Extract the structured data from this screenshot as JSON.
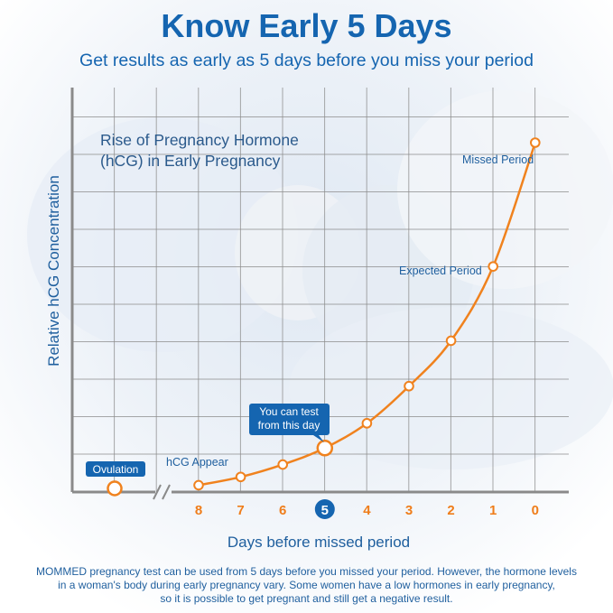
{
  "header": {
    "title": "Know Early 5 Days",
    "subtitle": "Get results as early as 5 days before you miss your period"
  },
  "chart_data": {
    "type": "line",
    "title": [
      "Rise of Pregnancy Hormone",
      "(hCG) in Early Pregnancy"
    ],
    "xlabel": "Days before missed period",
    "ylabel": "Relative hCG Concentration",
    "x_tick_labels": [
      "8",
      "7",
      "6",
      "5",
      "4",
      "3",
      "2",
      "1",
      "0"
    ],
    "highlighted_tick": "5",
    "x": [
      8,
      7,
      6,
      5,
      4,
      3,
      2,
      1,
      0
    ],
    "values": [
      0.1,
      0.3,
      0.6,
      1.0,
      1.6,
      2.5,
      3.6,
      5.4,
      8.4
    ],
    "ylim": [
      0,
      9.8
    ],
    "grid": true,
    "start_point": {
      "label": "Ovulation",
      "value": 0
    },
    "annotations": [
      {
        "text": "hCG Appear",
        "day": 8
      },
      {
        "text": [
          "You can test",
          "from this day"
        ],
        "day": 5
      },
      {
        "text": "Expected Period",
        "day": 1
      },
      {
        "text": "Missed Period",
        "day": 0
      }
    ]
  },
  "footer": {
    "lines": [
      "MOMMED pregnancy test can be used from 5 days before you missed your period. However,  the hormone levels",
      "in a woman's body during early pregnancy vary. Some women have a low hormones in early pregnancy,",
      "so it is possible to get pregnant and still get a negative result."
    ]
  },
  "colors": {
    "title_blue": "#1565b0",
    "label_blue": "#1f5f9e",
    "curve_orange": "#f0821e",
    "tick_orange": "#ef7d1a",
    "badge_fill": "#1565b0",
    "grid": "#8c8c8c"
  }
}
